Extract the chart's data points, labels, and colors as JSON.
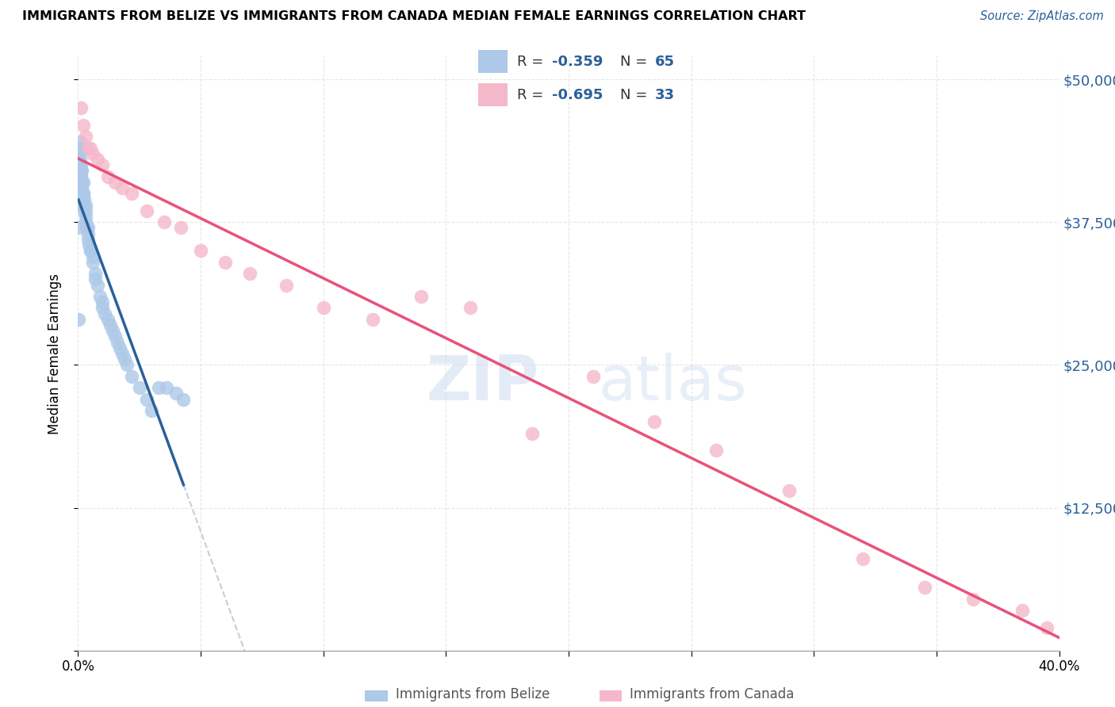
{
  "title": "IMMIGRANTS FROM BELIZE VS IMMIGRANTS FROM CANADA MEDIAN FEMALE EARNINGS CORRELATION CHART",
  "source": "Source: ZipAtlas.com",
  "ylabel": "Median Female Earnings",
  "yticks": [
    0,
    12500,
    25000,
    37500,
    50000
  ],
  "ytick_labels": [
    "",
    "$12,500",
    "$25,000",
    "$37,500",
    "$50,000"
  ],
  "xmin": 0.0,
  "xmax": 0.4,
  "ymin": 0,
  "ymax": 52000,
  "legend_r_belize": "-0.359",
  "legend_n_belize": "65",
  "legend_r_canada": "-0.695",
  "legend_n_canada": "33",
  "color_belize": "#adc8e8",
  "color_canada": "#f5b8cb",
  "color_belize_line": "#2a6099",
  "color_canada_line": "#e8527a",
  "color_dashed": "#c0c8d8",
  "watermark_zip": "ZIP",
  "watermark_atlas": "atlas",
  "belize_x": [
    0.0002,
    0.0003,
    0.0005,
    0.0006,
    0.0007,
    0.0008,
    0.0009,
    0.001,
    0.001,
    0.0012,
    0.0012,
    0.0013,
    0.0014,
    0.0015,
    0.0015,
    0.0016,
    0.0017,
    0.0018,
    0.0019,
    0.002,
    0.002,
    0.002,
    0.0022,
    0.0023,
    0.0024,
    0.0025,
    0.0026,
    0.003,
    0.003,
    0.003,
    0.0032,
    0.0034,
    0.0035,
    0.004,
    0.004,
    0.004,
    0.0045,
    0.005,
    0.005,
    0.006,
    0.006,
    0.007,
    0.007,
    0.008,
    0.009,
    0.01,
    0.01,
    0.011,
    0.012,
    0.013,
    0.014,
    0.015,
    0.016,
    0.017,
    0.018,
    0.019,
    0.02,
    0.022,
    0.025,
    0.028,
    0.03,
    0.033,
    0.036,
    0.04,
    0.043
  ],
  "belize_y": [
    29000,
    37000,
    43000,
    43500,
    44000,
    44500,
    43000,
    42500,
    42000,
    42000,
    41500,
    41000,
    41000,
    42000,
    41000,
    40500,
    40000,
    40000,
    39500,
    41000,
    40000,
    39000,
    40000,
    39500,
    39000,
    39000,
    38500,
    39000,
    38500,
    38000,
    37500,
    37000,
    37000,
    37000,
    36500,
    36000,
    35500,
    35000,
    35000,
    34500,
    34000,
    33000,
    32500,
    32000,
    31000,
    30500,
    30000,
    29500,
    29000,
    28500,
    28000,
    27500,
    27000,
    26500,
    26000,
    25500,
    25000,
    24000,
    23000,
    22000,
    21000,
    23000,
    23000,
    22500,
    22000
  ],
  "canada_x": [
    0.001,
    0.002,
    0.003,
    0.004,
    0.005,
    0.006,
    0.008,
    0.01,
    0.012,
    0.015,
    0.018,
    0.022,
    0.028,
    0.035,
    0.042,
    0.05,
    0.06,
    0.07,
    0.085,
    0.1,
    0.12,
    0.14,
    0.16,
    0.185,
    0.21,
    0.235,
    0.26,
    0.29,
    0.32,
    0.345,
    0.365,
    0.385,
    0.395
  ],
  "canada_y": [
    47500,
    46000,
    45000,
    44000,
    44000,
    43500,
    43000,
    42500,
    41500,
    41000,
    40500,
    40000,
    38500,
    37500,
    37000,
    35000,
    34000,
    33000,
    32000,
    30000,
    29000,
    31000,
    30000,
    19000,
    24000,
    20000,
    17500,
    14000,
    8000,
    5500,
    4500,
    3500,
    2000
  ]
}
